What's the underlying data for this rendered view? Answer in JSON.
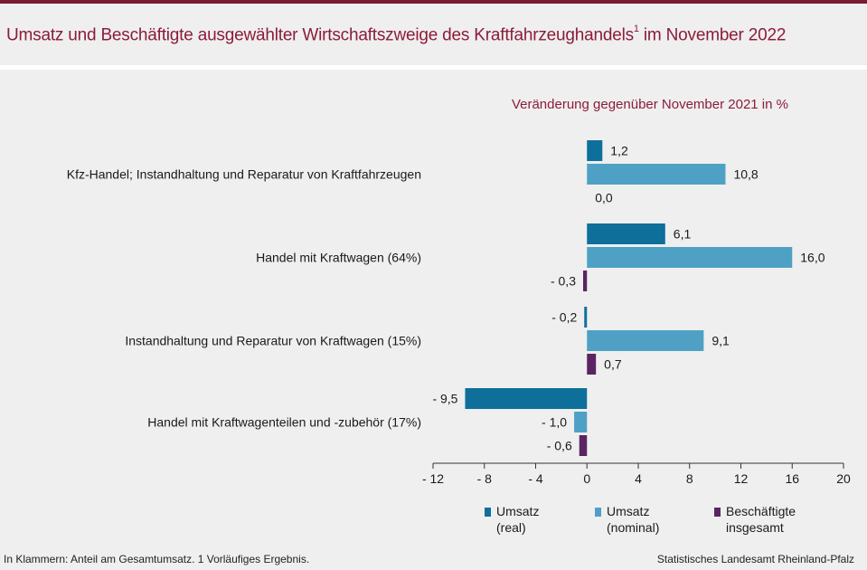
{
  "title": "Umsatz und Beschäftigte ausgewählter Wirtschaftszweige des Kraftfahrzeughandels",
  "title_sup": "1",
  "title_tail": " im November 2022",
  "footnote": "In Klammern: Anteil am Gesamtumsatz. 1 Vorläufiges Ergebnis.",
  "source": "Statistisches Landesamt Rheinland-Pfalz",
  "colors": {
    "umsatz_real": "#0e6f9b",
    "umsatz_nominal": "#4fa0c5",
    "beschaeftigte": "#5b2463",
    "accent": "#8b1c3b"
  },
  "chart_data": {
    "type": "bar",
    "orientation": "horizontal",
    "subtitle": "Veränderung gegenüber November 2021 in %",
    "categories": [
      "Kfz-Handel; Instandhaltung und Reparatur von Kraftfahrzeugen",
      "Handel mit Kraftwagen (64%)",
      "Instandhaltung und Reparatur von Kraftwagen (15%)",
      "Handel mit Kraftwagenteilen und -zubehör (17%)"
    ],
    "series": [
      {
        "name": "Umsatz (real)",
        "legend_lines": [
          "Umsatz",
          "(real)"
        ],
        "values": [
          1.2,
          6.1,
          -0.2,
          -9.5
        ],
        "labels": [
          "1,2",
          "6,1",
          "- 0,2",
          "- 9,5"
        ]
      },
      {
        "name": "Umsatz (nominal)",
        "legend_lines": [
          "Umsatz",
          "(nominal)"
        ],
        "values": [
          10.8,
          16.0,
          9.1,
          -1.0
        ],
        "labels": [
          "10,8",
          "16,0",
          "9,1",
          "- 1,0"
        ]
      },
      {
        "name": "Beschäftigte insgesamt",
        "legend_lines": [
          "Beschäftigte",
          "insgesamt"
        ],
        "values": [
          0.0,
          -0.3,
          0.7,
          -0.6
        ],
        "labels": [
          "0,0",
          "- 0,3",
          "0,7",
          "- 0,6"
        ]
      }
    ],
    "xlim": [
      -12,
      20
    ],
    "xticks": [
      -12,
      -8,
      -4,
      0,
      4,
      8,
      12,
      16,
      20
    ],
    "xtick_labels": [
      "- 12",
      "- 8",
      "- 4",
      "0",
      "4",
      "8",
      "12",
      "16",
      "20"
    ],
    "legend_position": "bottom",
    "grid": false
  }
}
